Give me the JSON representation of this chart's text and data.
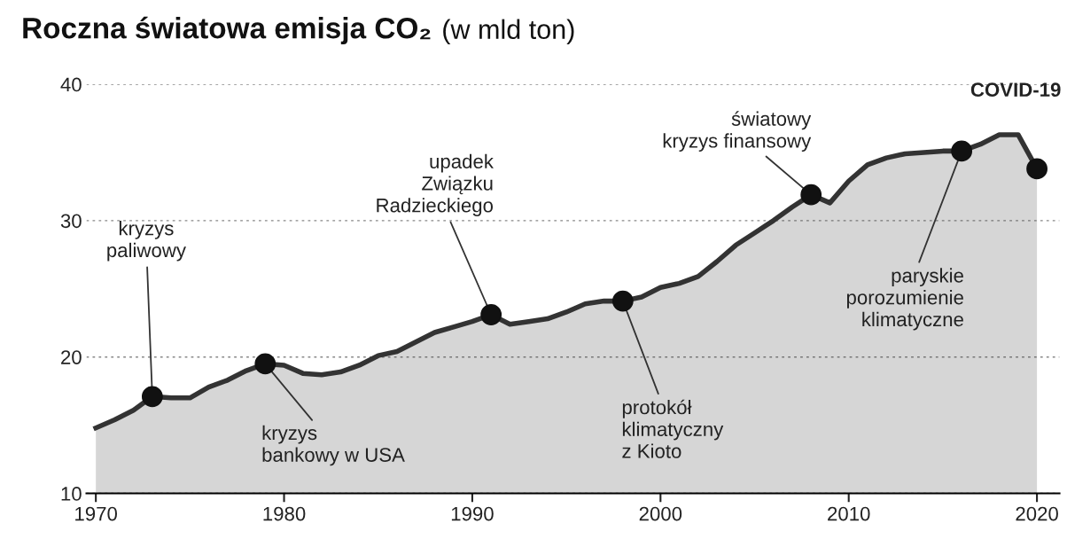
{
  "chart_data": {
    "type": "area",
    "title": "Roczna światowa emisja CO₂",
    "subtitle": "(w mld ton)",
    "x": [
      1970,
      1971,
      1972,
      1973,
      1974,
      1975,
      1976,
      1977,
      1978,
      1979,
      1980,
      1981,
      1982,
      1983,
      1984,
      1985,
      1986,
      1987,
      1988,
      1989,
      1990,
      1991,
      1992,
      1993,
      1994,
      1995,
      1996,
      1997,
      1998,
      1999,
      2000,
      2001,
      2002,
      2003,
      2004,
      2005,
      2006,
      2007,
      2008,
      2009,
      2010,
      2011,
      2012,
      2013,
      2014,
      2015,
      2016,
      2017,
      2018,
      2019,
      2020
    ],
    "series": [
      {
        "color": "#333333",
        "values": [
          14.8,
          15.4,
          16.1,
          17.1,
          17.0,
          17.0,
          17.8,
          18.3,
          19.0,
          19.5,
          19.4,
          18.8,
          18.7,
          18.9,
          19.4,
          20.1,
          20.4,
          21.1,
          21.8,
          22.2,
          22.6,
          23.1,
          22.4,
          22.6,
          22.8,
          23.3,
          23.9,
          24.1,
          24.1,
          24.4,
          25.1,
          25.4,
          25.9,
          27.0,
          28.2,
          29.1,
          30.0,
          31.0,
          31.9,
          31.3,
          32.9,
          34.1,
          34.6,
          34.9,
          35.0,
          35.1,
          35.1,
          35.6,
          36.3,
          36.3,
          33.8
        ]
      },
      {
        "type": "scatter",
        "color": "#111111",
        "marker": "circle",
        "x": [
          1973,
          1979,
          1991,
          1998,
          2008,
          2016,
          2020
        ],
        "values": [
          17.1,
          19.5,
          23.1,
          24.1,
          31.9,
          35.1,
          33.8
        ]
      }
    ],
    "annotations": [
      {
        "text": "kryzys\npaliwowy",
        "x": 1973,
        "y": 17.1
      },
      {
        "text": "kryzys\nbankowy w USA",
        "x": 1979,
        "y": 19.5
      },
      {
        "text": "upadek\nZwiązku\nRadzieckiego",
        "x": 1991,
        "y": 23.1
      },
      {
        "text": "protokół\nklimatyczny\nz Kioto",
        "x": 1998,
        "y": 24.1
      },
      {
        "text": "światowy\nkryzys finansowy",
        "x": 2008,
        "y": 31.9
      },
      {
        "text": "paryskie\nporozumienie\nklimatyczne",
        "x": 2016,
        "y": 35.1
      },
      "COVID-19"
    ],
    "xlim": [
      1969.5,
      2021.2
    ],
    "ylim": [
      10,
      40
    ],
    "xticks": [
      1970,
      1980,
      1990,
      2000,
      2010,
      2020
    ],
    "yticks": [
      10,
      20,
      30,
      40
    ],
    "grid": "y",
    "line_style": "solid",
    "legend": false
  }
}
